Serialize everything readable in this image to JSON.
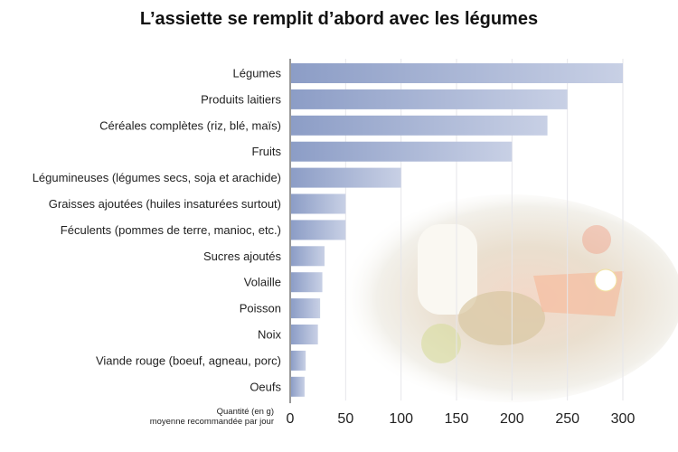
{
  "chart_data": {
    "type": "bar",
    "orientation": "horizontal",
    "title": "L’assiette se remplit d’abord avec les légumes",
    "xlabel": [
      "Quantité (en g)",
      "moyenne recommandée par jour"
    ],
    "categories": [
      "Légumes",
      "Produits laitiers",
      "Céréales complètes (riz, blé, maïs)",
      "Fruits",
      "Légumineuses (légumes secs, soja et arachide)",
      "Graisses ajoutées (huiles insaturées surtout)",
      "Féculents (pommes de terre, manioc, etc.)",
      "Sucres ajoutés",
      "Volaille",
      "Poisson",
      "Noix",
      "Viande rouge (boeuf, agneau, porc)",
      "Oeufs"
    ],
    "values": [
      300,
      250,
      232,
      200,
      100,
      50,
      50,
      31,
      29,
      27,
      25,
      14,
      13
    ],
    "xlim": [
      0,
      300
    ],
    "xticks": [
      0,
      50,
      100,
      150,
      200,
      250,
      300
    ],
    "grid": true,
    "bar_color_start": "#8c9dc6",
    "bar_color_end": "#c8d0e5",
    "background_image": "faded-food-photo"
  }
}
